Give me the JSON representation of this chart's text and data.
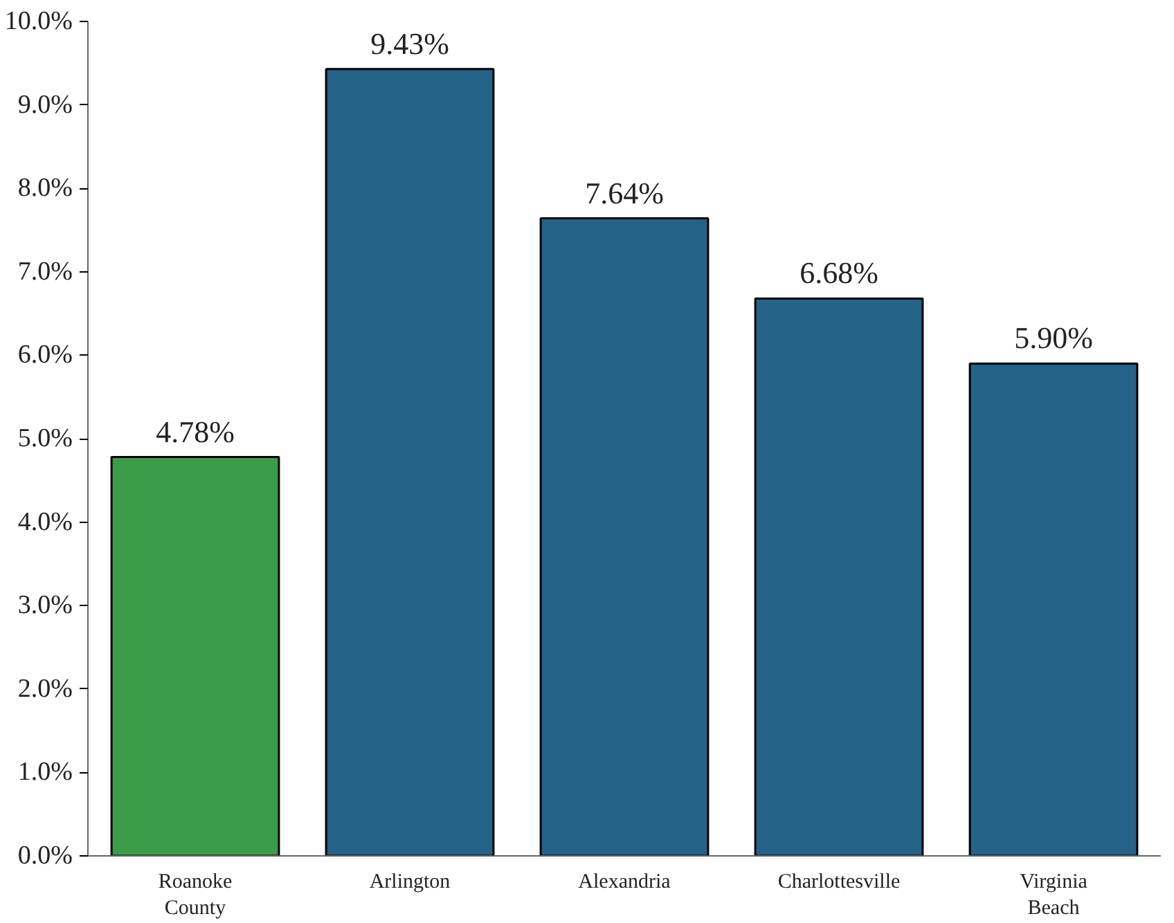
{
  "chart_data": {
    "type": "bar",
    "categories": [
      "Roanoke County",
      "Arlington",
      "Alexandria",
      "Charlottesville",
      "Virginia Beach"
    ],
    "values": [
      4.78,
      9.43,
      7.64,
      6.68,
      5.9
    ],
    "colors": [
      "#3a9c48",
      "#256287",
      "#256287",
      "#256287",
      "#256287"
    ],
    "value_labels": [
      "4.78%",
      "9.43%",
      "7.64%",
      "6.68%",
      "5.90%"
    ],
    "ylim": [
      0,
      10
    ],
    "yticks": [
      {
        "value": 0,
        "label": "0.0%"
      },
      {
        "value": 1,
        "label": "1.0%"
      },
      {
        "value": 2,
        "label": "2.0%"
      },
      {
        "value": 3,
        "label": "3.0%"
      },
      {
        "value": 4,
        "label": "4.0%"
      },
      {
        "value": 5,
        "label": "5.0%"
      },
      {
        "value": 6,
        "label": "6.0%"
      },
      {
        "value": 7,
        "label": "7.0%"
      },
      {
        "value": 8,
        "label": "8.0%"
      },
      {
        "value": 9,
        "label": "9.0%"
      },
      {
        "value": 10,
        "label": "10.0%"
      }
    ],
    "grid": false
  }
}
